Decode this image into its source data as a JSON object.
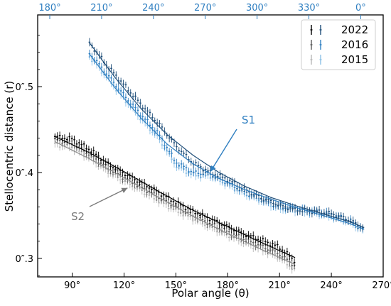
{
  "chart_data": {
    "type": "line",
    "xlabel": "Polar angle (θ)",
    "ylabel": "Stellocentric distance (r)",
    "x_range": [
      70,
      270
    ],
    "y_range": [
      0.2785,
      0.5835
    ],
    "bottom_ticks": [
      {
        "value": 90,
        "label": "90°"
      },
      {
        "value": 120,
        "label": "120°"
      },
      {
        "value": 150,
        "label": "150°"
      },
      {
        "value": 180,
        "label": "180°"
      },
      {
        "value": 210,
        "label": "210°"
      },
      {
        "value": 240,
        "label": "240°"
      },
      {
        "value": 270,
        "label": "270°"
      }
    ],
    "top_ticks": [
      {
        "value": 77,
        "label": "180°"
      },
      {
        "value": 107,
        "label": "210°"
      },
      {
        "value": 137,
        "label": "240°"
      },
      {
        "value": 167,
        "label": "270°"
      },
      {
        "value": 197,
        "label": "300°"
      },
      {
        "value": 227,
        "label": "330°"
      },
      {
        "value": 257,
        "label": "0°"
      }
    ],
    "left_ticks": [
      {
        "value": 0.3,
        "label": "0″.3"
      },
      {
        "value": 0.4,
        "label": "0″.4"
      },
      {
        "value": 0.5,
        "label": "0″.5"
      }
    ],
    "legend": {
      "placement": "top-right",
      "entries": [
        {
          "label": "2022",
          "colors": [
            "#000000",
            "#1f4e79"
          ]
        },
        {
          "label": "2016",
          "colors": [
            "#5a5a5a",
            "#2f7fc1"
          ]
        },
        {
          "label": "2015",
          "colors": [
            "#b8b8b8",
            "#8cc0e6"
          ]
        }
      ]
    },
    "annotations": [
      {
        "text": "S1",
        "color": "#2f7fc1",
        "arrow_to": [
          170,
          0.401
        ]
      },
      {
        "text": "S2",
        "color": "#7a7a7a",
        "arrow_to": [
          122,
          0.382
        ]
      }
    ],
    "series": [
      {
        "name": "2022",
        "spiral": "S1",
        "color": "#1f4e79",
        "x": [
          100,
          110,
          120,
          130,
          140,
          150,
          160,
          170,
          180,
          190,
          200,
          210,
          220,
          230,
          240,
          250,
          259
        ],
        "y": [
          0.551,
          0.525,
          0.502,
          0.479,
          0.457,
          0.431,
          0.411,
          0.4,
          0.392,
          0.38,
          0.37,
          0.362,
          0.356,
          0.355,
          0.352,
          0.345,
          0.335
        ]
      },
      {
        "name": "2016",
        "spiral": "S1",
        "color": "#2f7fc1",
        "x": [
          100,
          110,
          120,
          130,
          140,
          150,
          160,
          170,
          180,
          190,
          200,
          210,
          220,
          230,
          240,
          250,
          259
        ],
        "y": [
          0.539,
          0.515,
          0.49,
          0.467,
          0.445,
          0.412,
          0.4,
          0.398,
          0.388,
          0.377,
          0.369,
          0.36,
          0.358,
          0.355,
          0.351,
          0.345,
          0.333
        ]
      },
      {
        "name": "2015",
        "spiral": "S1",
        "color": "#8cc0e6",
        "x": [
          100,
          110,
          120,
          130,
          140,
          150,
          160,
          170,
          180,
          190,
          200,
          210,
          220,
          230,
          240,
          250,
          259
        ],
        "y": [
          0.535,
          0.511,
          0.486,
          0.462,
          0.44,
          0.408,
          0.397,
          0.396,
          0.386,
          0.375,
          0.367,
          0.358,
          0.356,
          0.353,
          0.349,
          0.343,
          0.331
        ]
      },
      {
        "name": "2022",
        "spiral": "S2",
        "color": "#000000",
        "x": [
          80,
          90,
          100,
          110,
          120,
          130,
          140,
          150,
          160,
          170,
          180,
          190,
          200,
          210,
          219
        ],
        "y": [
          0.442,
          0.439,
          0.427,
          0.411,
          0.399,
          0.388,
          0.377,
          0.365,
          0.355,
          0.346,
          0.337,
          0.328,
          0.321,
          0.313,
          0.297
        ]
      },
      {
        "name": "2016",
        "spiral": "S2",
        "color": "#5a5a5a",
        "x": [
          80,
          90,
          100,
          110,
          120,
          130,
          140,
          150,
          160,
          170,
          180,
          190,
          200,
          210,
          219
        ],
        "y": [
          0.438,
          0.434,
          0.421,
          0.406,
          0.394,
          0.383,
          0.371,
          0.36,
          0.35,
          0.34,
          0.331,
          0.322,
          0.314,
          0.305,
          0.291
        ]
      },
      {
        "name": "2015",
        "spiral": "S2",
        "color": "#b8b8b8",
        "x": [
          80,
          90,
          100,
          110,
          120,
          130,
          140,
          150,
          160,
          170,
          180,
          190,
          200,
          210,
          219
        ],
        "y": [
          0.433,
          0.429,
          0.417,
          0.402,
          0.39,
          0.379,
          0.367,
          0.356,
          0.346,
          0.336,
          0.327,
          0.318,
          0.31,
          0.301,
          0.286
        ]
      }
    ],
    "fits": [
      {
        "name": "S1 fit 2022",
        "color": "#1f4e79",
        "x": [
          100,
          115,
          130,
          145,
          160,
          175,
          190,
          205,
          220,
          235,
          250,
          259
        ],
        "y": [
          0.551,
          0.51,
          0.474,
          0.444,
          0.42,
          0.4,
          0.384,
          0.371,
          0.361,
          0.352,
          0.343,
          0.336
        ]
      },
      {
        "name": "S1 fit 2016",
        "color": "#2f7fc1",
        "x": [
          100,
          115,
          130,
          145,
          160,
          175,
          190,
          205,
          220,
          235,
          250,
          259
        ],
        "y": [
          0.538,
          0.498,
          0.463,
          0.433,
          0.41,
          0.393,
          0.38,
          0.369,
          0.359,
          0.35,
          0.341,
          0.334
        ]
      },
      {
        "name": "S2 fit 2022",
        "color": "#000000",
        "x": [
          80,
          100,
          120,
          140,
          160,
          180,
          200,
          219
        ],
        "y": [
          0.442,
          0.423,
          0.401,
          0.378,
          0.356,
          0.337,
          0.318,
          0.301
        ]
      },
      {
        "name": "S2 fit 2015",
        "color": "#8a8a8a",
        "x": [
          80,
          100,
          120,
          140,
          160,
          180,
          200,
          219
        ],
        "y": [
          0.436,
          0.416,
          0.394,
          0.371,
          0.349,
          0.329,
          0.31,
          0.293
        ]
      }
    ]
  }
}
